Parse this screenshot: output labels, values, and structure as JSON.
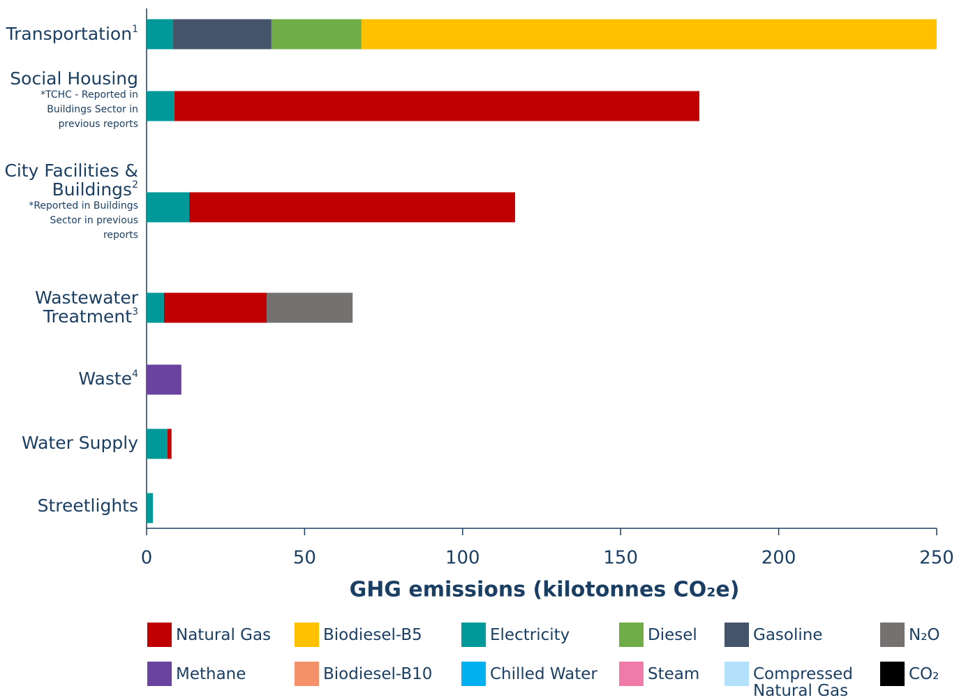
{
  "chart_data": {
    "type": "stacked-bar-horizontal",
    "x_label": "GHG emissions (kilotonnes CO₂e)",
    "categories": [
      "Transportation",
      "Social Housing",
      "City Facilities & Buildings",
      "Wastewater Treatment",
      "Waste",
      "Water Supply",
      "Streetlights"
    ],
    "category_superscripts": [
      "1",
      null,
      "2",
      "3",
      "4",
      null,
      null
    ],
    "category_notes": [
      null,
      "*TCHC - Reported in Buildings Sector in previous reports",
      "*Reported in Buildings Sector in previous reports",
      null,
      null,
      null,
      null
    ],
    "series": [
      {
        "name": "Electricity",
        "color": "#009999",
        "values": [
          8.4,
          8.8,
          13.5,
          5.5,
          0,
          6.6,
          2.0
        ]
      },
      {
        "name": "Methane",
        "color": "#6a43a0",
        "values": [
          0,
          0,
          0,
          0,
          11.0,
          0,
          0
        ]
      },
      {
        "name": "Gasoline",
        "color": "#44546a",
        "values": [
          31.1,
          0,
          0,
          0,
          0,
          0,
          0
        ]
      },
      {
        "name": "Diesel",
        "color": "#70ad47",
        "values": [
          28.5,
          0,
          0,
          0,
          0,
          0,
          0
        ]
      },
      {
        "name": "Biodiesel-B5",
        "color": "#ffc000",
        "values": [
          182.0,
          0,
          0,
          0,
          0,
          0,
          0
        ]
      },
      {
        "name": "Natural Gas",
        "color": "#c00000",
        "values": [
          0,
          166.1,
          103.1,
          32.5,
          0,
          1.3,
          0
        ]
      },
      {
        "name": "N₂O",
        "color": "#767171",
        "values": [
          0,
          0,
          0,
          27.2,
          0,
          0,
          0
        ]
      },
      {
        "name": "Biodiesel-B10",
        "color": "#f4916b",
        "values": [
          0,
          0,
          0,
          0,
          0,
          0,
          0
        ]
      },
      {
        "name": "Chilled Water",
        "color": "#00b0f0",
        "values": [
          0,
          0,
          0,
          0,
          0,
          0,
          0
        ]
      },
      {
        "name": "Steam",
        "color": "#f07aa8",
        "values": [
          0,
          0,
          0,
          0,
          0,
          0,
          0
        ]
      },
      {
        "name": "Compressed Natural Gas",
        "color": "#b3e0fb",
        "values": [
          0,
          0,
          0,
          0,
          0,
          0,
          0
        ]
      },
      {
        "name": "CO₂",
        "color": "#000000",
        "values": [
          0,
          0,
          0,
          0,
          0,
          0,
          0
        ]
      }
    ],
    "xlim": [
      0,
      250
    ],
    "xticks": [
      0,
      50,
      100,
      150,
      200,
      250
    ],
    "grid": false
  }
}
